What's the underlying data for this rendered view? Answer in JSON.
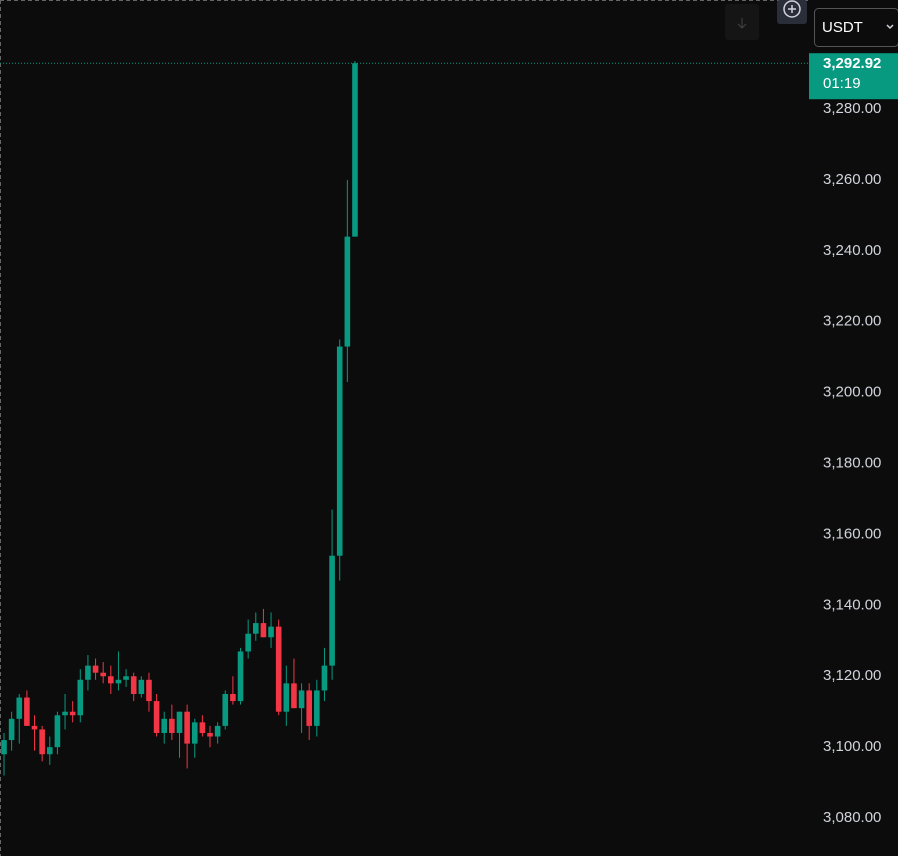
{
  "chart_data": {
    "type": "candlestick",
    "open": [
      3098,
      3102,
      3108,
      3114,
      3106,
      3105,
      3098,
      3100,
      3109,
      3110,
      3109,
      3119,
      3123,
      3121,
      3120,
      3118,
      3119,
      3120,
      3115,
      3119,
      3113,
      3104,
      3108,
      3104,
      3110,
      3101,
      3107,
      3104,
      3103,
      3106,
      3115,
      3113,
      3127,
      3132,
      3135,
      3131,
      3134,
      3110,
      3118,
      3111,
      3116,
      3106,
      3116,
      3123,
      3154,
      3213,
      3244
    ],
    "high": [
      3104,
      3110,
      3115,
      3116,
      3109,
      3106,
      3103,
      3110,
      3115,
      3113,
      3122,
      3126,
      3125,
      3124,
      3123,
      3127,
      3122,
      3121,
      3120,
      3121,
      3115,
      3110,
      3112,
      3110,
      3112,
      3108,
      3109,
      3106,
      3107,
      3116,
      3120,
      3128,
      3136,
      3138,
      3139,
      3138,
      3136,
      3123,
      3125,
      3118,
      3118,
      3119,
      3128,
      3167,
      3215,
      3260,
      3293.5
    ],
    "low": [
      3092,
      3099,
      3101,
      3106,
      3099,
      3096,
      3095,
      3098,
      3105,
      3107,
      3107,
      3116,
      3119,
      3118,
      3115,
      3116,
      3117,
      3113,
      3114,
      3110,
      3103,
      3101,
      3102,
      3097,
      3094,
      3097,
      3103,
      3100,
      3101,
      3105,
      3112,
      3112,
      3125,
      3130,
      3131,
      3128,
      3109,
      3106,
      3111,
      3104,
      3102,
      3103,
      3113,
      3119,
      3147,
      3203,
      3244
    ],
    "close": [
      3102,
      3108,
      3114,
      3106,
      3105,
      3098,
      3100,
      3109,
      3110,
      3109,
      3119,
      3123,
      3121,
      3120,
      3118,
      3119,
      3120,
      3115,
      3119,
      3113,
      3104,
      3108,
      3104,
      3110,
      3101,
      3107,
      3104,
      3103,
      3106,
      3115,
      3113,
      3127,
      3132,
      3135,
      3131,
      3134,
      3110,
      3118,
      3111,
      3116,
      3106,
      3116,
      3123,
      3154,
      3213,
      3244,
      3292.92
    ],
    "up_color": "#089981",
    "down_color": "#f23645",
    "ylim": [
      3069.3,
      3310.75
    ],
    "yticks": [
      {
        "value": 3080,
        "label": "3,080.00"
      },
      {
        "value": 3100,
        "label": "3,100.00"
      },
      {
        "value": 3120,
        "label": "3,120.00"
      },
      {
        "value": 3140,
        "label": "3,140.00"
      },
      {
        "value": 3160,
        "label": "3,160.00"
      },
      {
        "value": 3180,
        "label": "3,180.00"
      },
      {
        "value": 3200,
        "label": "3,200.00"
      },
      {
        "value": 3220,
        "label": "3,220.00"
      },
      {
        "value": 3240,
        "label": "3,240.00"
      },
      {
        "value": 3260,
        "label": "3,260.00"
      },
      {
        "value": 3280,
        "label": "3,280.00"
      }
    ],
    "last_price": {
      "value": 3292.92,
      "label": "3,292.92"
    },
    "countdown": "01:19",
    "currency": "USDT"
  }
}
